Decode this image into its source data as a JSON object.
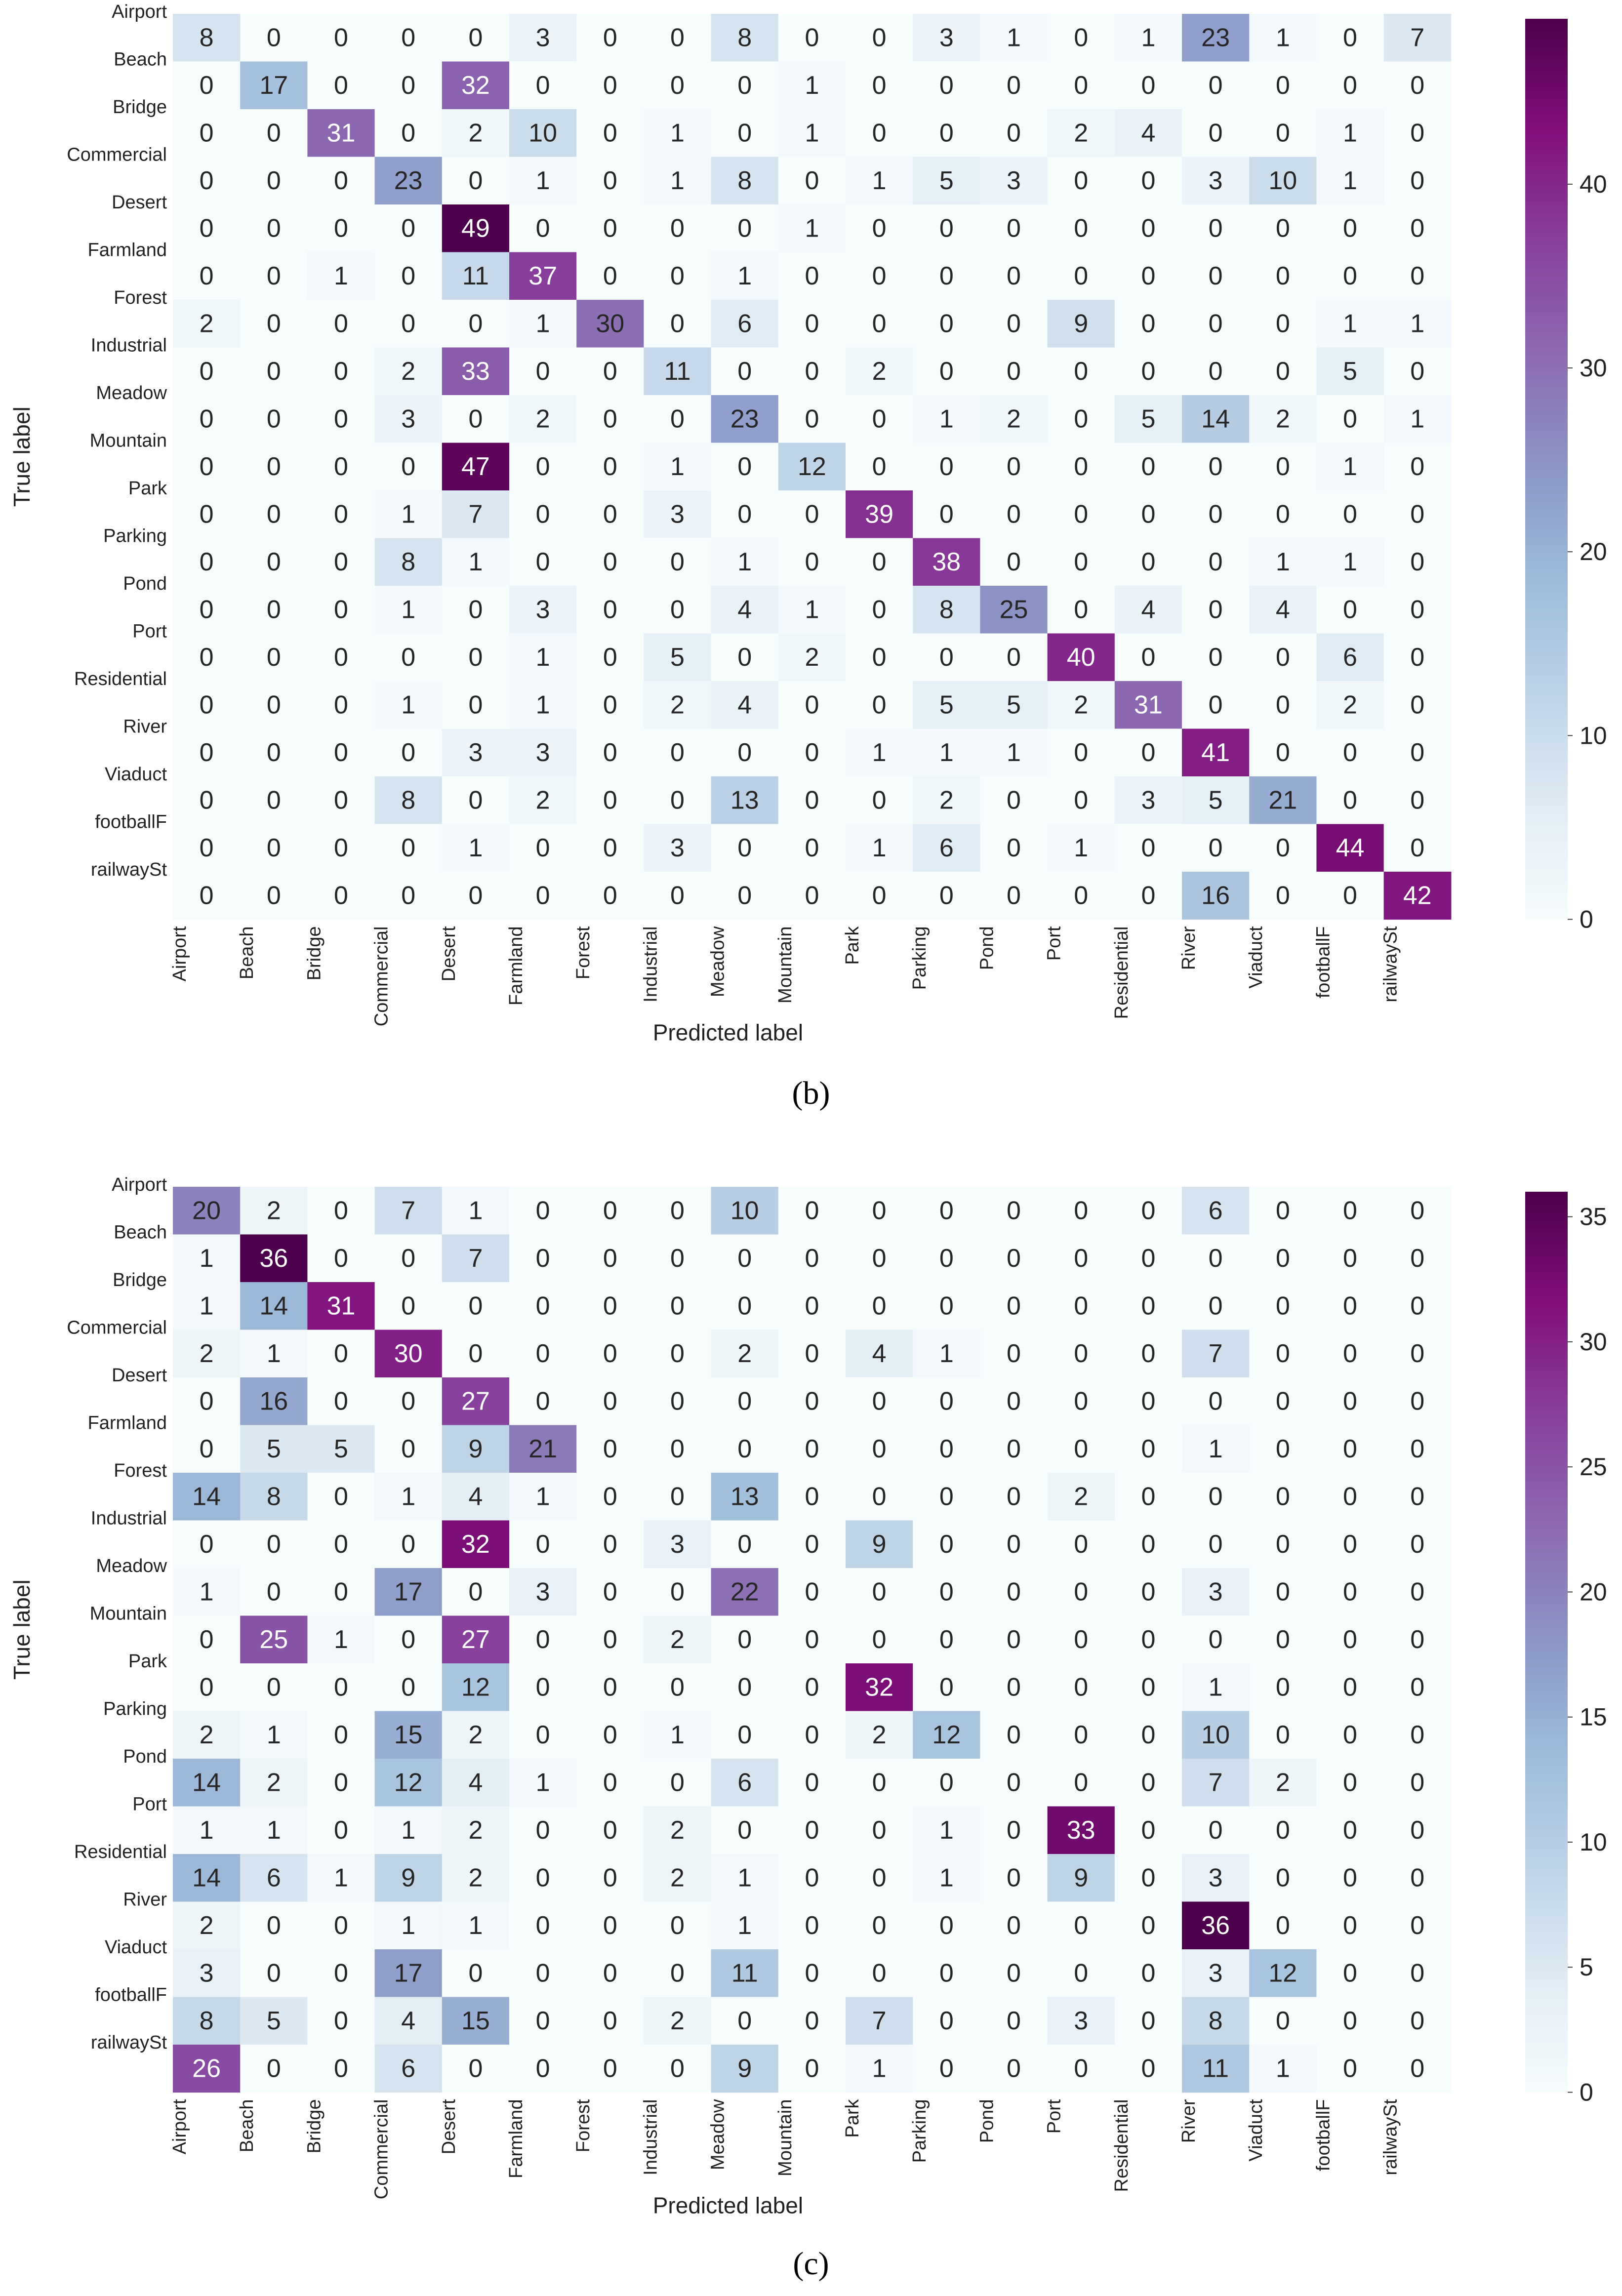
{
  "chart_data": [
    {
      "type": "heatmap",
      "panel_label": "b",
      "row_labels": [
        "Airport",
        "Beach",
        "Bridge",
        "Commercial",
        "Desert",
        "Farmland",
        "Forest",
        "Industrial",
        "Meadow",
        "Mountain",
        "Park",
        "Parking",
        "Pond",
        "Port",
        "Residential",
        "River",
        "Viaduct",
        "footballF",
        "railwaySt"
      ],
      "col_labels": [
        "Airport",
        "Beach",
        "Bridge",
        "Commercial",
        "Desert",
        "Farmland",
        "Forest",
        "Industrial",
        "Meadow",
        "Mountain",
        "Park",
        "Parking",
        "Pond",
        "Port",
        "Residential",
        "River",
        "Viaduct",
        "footballF",
        "railwaySt"
      ],
      "xlabel": "Predicted label",
      "ylabel": "True label",
      "values": [
        [
          8,
          0,
          0,
          0,
          0,
          3,
          0,
          0,
          8,
          0,
          0,
          3,
          1,
          0,
          1,
          23,
          1,
          0,
          7
        ],
        [
          0,
          17,
          0,
          0,
          32,
          0,
          0,
          0,
          0,
          1,
          0,
          0,
          0,
          0,
          0,
          0,
          0,
          0,
          0
        ],
        [
          0,
          0,
          31,
          0,
          2,
          10,
          0,
          1,
          0,
          1,
          0,
          0,
          0,
          2,
          4,
          0,
          0,
          1,
          0
        ],
        [
          0,
          0,
          0,
          23,
          0,
          1,
          0,
          1,
          8,
          0,
          1,
          5,
          3,
          0,
          0,
          3,
          10,
          1,
          0
        ],
        [
          0,
          0,
          0,
          0,
          49,
          0,
          0,
          0,
          0,
          1,
          0,
          0,
          0,
          0,
          0,
          0,
          0,
          0,
          0
        ],
        [
          0,
          0,
          1,
          0,
          11,
          37,
          0,
          0,
          1,
          0,
          0,
          0,
          0,
          0,
          0,
          0,
          0,
          0,
          0
        ],
        [
          2,
          0,
          0,
          0,
          0,
          1,
          30,
          0,
          6,
          0,
          0,
          0,
          0,
          9,
          0,
          0,
          0,
          1,
          1
        ],
        [
          0,
          0,
          0,
          2,
          33,
          0,
          0,
          11,
          0,
          0,
          2,
          0,
          0,
          0,
          0,
          0,
          0,
          5,
          0
        ],
        [
          0,
          0,
          0,
          3,
          0,
          2,
          0,
          0,
          23,
          0,
          0,
          1,
          2,
          0,
          5,
          14,
          2,
          0,
          1
        ],
        [
          0,
          0,
          0,
          0,
          47,
          0,
          0,
          1,
          0,
          12,
          0,
          0,
          0,
          0,
          0,
          0,
          0,
          1,
          0
        ],
        [
          0,
          0,
          0,
          1,
          7,
          0,
          0,
          3,
          0,
          0,
          39,
          0,
          0,
          0,
          0,
          0,
          0,
          0,
          0
        ],
        [
          0,
          0,
          0,
          8,
          1,
          0,
          0,
          0,
          1,
          0,
          0,
          38,
          0,
          0,
          0,
          0,
          1,
          1,
          0
        ],
        [
          0,
          0,
          0,
          1,
          0,
          3,
          0,
          0,
          4,
          1,
          0,
          8,
          25,
          0,
          4,
          0,
          4,
          0,
          0
        ],
        [
          0,
          0,
          0,
          0,
          0,
          1,
          0,
          5,
          0,
          2,
          0,
          0,
          0,
          40,
          0,
          0,
          0,
          6,
          0
        ],
        [
          0,
          0,
          0,
          1,
          0,
          1,
          0,
          2,
          4,
          0,
          0,
          5,
          5,
          2,
          31,
          0,
          0,
          2,
          0
        ],
        [
          0,
          0,
          0,
          0,
          3,
          3,
          0,
          0,
          0,
          0,
          1,
          1,
          1,
          0,
          0,
          41,
          0,
          0,
          0
        ],
        [
          0,
          0,
          0,
          8,
          0,
          2,
          0,
          0,
          13,
          0,
          0,
          2,
          0,
          0,
          3,
          5,
          21,
          0,
          0
        ],
        [
          0,
          0,
          0,
          0,
          1,
          0,
          0,
          3,
          0,
          0,
          1,
          6,
          0,
          1,
          0,
          0,
          0,
          44,
          0
        ],
        [
          0,
          0,
          0,
          0,
          0,
          0,
          0,
          0,
          0,
          0,
          0,
          0,
          0,
          0,
          0,
          16,
          0,
          0,
          42
        ]
      ],
      "colorbar": {
        "min": 0,
        "max": 49,
        "ticks": [
          0,
          10,
          20,
          30,
          40
        ]
      },
      "colormap": "BuPu"
    },
    {
      "type": "heatmap",
      "panel_label": "c",
      "row_labels": [
        "Airport",
        "Beach",
        "Bridge",
        "Commercial",
        "Desert",
        "Farmland",
        "Forest",
        "Industrial",
        "Meadow",
        "Mountain",
        "Park",
        "Parking",
        "Pond",
        "Port",
        "Residential",
        "River",
        "Viaduct",
        "footballF",
        "railwaySt"
      ],
      "col_labels": [
        "Airport",
        "Beach",
        "Bridge",
        "Commercial",
        "Desert",
        "Farmland",
        "Forest",
        "Industrial",
        "Meadow",
        "Mountain",
        "Park",
        "Parking",
        "Pond",
        "Port",
        "Residential",
        "River",
        "Viaduct",
        "footballF",
        "railwaySt"
      ],
      "xlabel": "Predicted label",
      "ylabel": "True label",
      "values": [
        [
          20,
          2,
          0,
          7,
          1,
          0,
          0,
          0,
          10,
          0,
          0,
          0,
          0,
          0,
          0,
          6,
          0,
          0,
          0
        ],
        [
          1,
          36,
          0,
          0,
          7,
          0,
          0,
          0,
          0,
          0,
          0,
          0,
          0,
          0,
          0,
          0,
          0,
          0,
          0
        ],
        [
          1,
          14,
          31,
          0,
          0,
          0,
          0,
          0,
          0,
          0,
          0,
          0,
          0,
          0,
          0,
          0,
          0,
          0,
          0
        ],
        [
          2,
          1,
          0,
          30,
          0,
          0,
          0,
          0,
          2,
          0,
          4,
          1,
          0,
          0,
          0,
          7,
          0,
          0,
          0
        ],
        [
          0,
          16,
          0,
          0,
          27,
          0,
          0,
          0,
          0,
          0,
          0,
          0,
          0,
          0,
          0,
          0,
          0,
          0,
          0
        ],
        [
          0,
          5,
          5,
          0,
          9,
          21,
          0,
          0,
          0,
          0,
          0,
          0,
          0,
          0,
          0,
          1,
          0,
          0,
          0
        ],
        [
          14,
          8,
          0,
          1,
          4,
          1,
          0,
          0,
          13,
          0,
          0,
          0,
          0,
          2,
          0,
          0,
          0,
          0,
          0
        ],
        [
          0,
          0,
          0,
          0,
          32,
          0,
          0,
          3,
          0,
          0,
          9,
          0,
          0,
          0,
          0,
          0,
          0,
          0,
          0
        ],
        [
          1,
          0,
          0,
          17,
          0,
          3,
          0,
          0,
          22,
          0,
          0,
          0,
          0,
          0,
          0,
          3,
          0,
          0,
          0
        ],
        [
          0,
          25,
          1,
          0,
          27,
          0,
          0,
          2,
          0,
          0,
          0,
          0,
          0,
          0,
          0,
          0,
          0,
          0,
          0
        ],
        [
          0,
          0,
          0,
          0,
          12,
          0,
          0,
          0,
          0,
          0,
          32,
          0,
          0,
          0,
          0,
          1,
          0,
          0,
          0
        ],
        [
          2,
          1,
          0,
          15,
          2,
          0,
          0,
          1,
          0,
          0,
          2,
          12,
          0,
          0,
          0,
          10,
          0,
          0,
          0
        ],
        [
          14,
          2,
          0,
          12,
          4,
          1,
          0,
          0,
          6,
          0,
          0,
          0,
          0,
          0,
          0,
          7,
          2,
          0,
          0
        ],
        [
          1,
          1,
          0,
          1,
          2,
          0,
          0,
          2,
          0,
          0,
          0,
          1,
          0,
          33,
          0,
          0,
          0,
          0,
          0
        ],
        [
          14,
          6,
          1,
          9,
          2,
          0,
          0,
          2,
          1,
          0,
          0,
          1,
          0,
          9,
          0,
          3,
          0,
          0,
          0
        ],
        [
          2,
          0,
          0,
          1,
          1,
          0,
          0,
          0,
          1,
          0,
          0,
          0,
          0,
          0,
          0,
          36,
          0,
          0,
          0
        ],
        [
          3,
          0,
          0,
          17,
          0,
          0,
          0,
          0,
          11,
          0,
          0,
          0,
          0,
          0,
          0,
          3,
          12,
          0,
          0
        ],
        [
          8,
          5,
          0,
          4,
          15,
          0,
          0,
          2,
          0,
          0,
          7,
          0,
          0,
          3,
          0,
          8,
          0,
          0,
          0
        ],
        [
          26,
          0,
          0,
          6,
          0,
          0,
          0,
          0,
          9,
          0,
          1,
          0,
          0,
          0,
          0,
          11,
          1,
          0,
          0
        ]
      ],
      "colorbar": {
        "min": 0,
        "max": 36,
        "ticks": [
          0,
          5,
          10,
          15,
          20,
          25,
          30,
          35
        ]
      },
      "colormap": "BuPu"
    }
  ],
  "captions": [
    "(b)",
    "(c)"
  ]
}
